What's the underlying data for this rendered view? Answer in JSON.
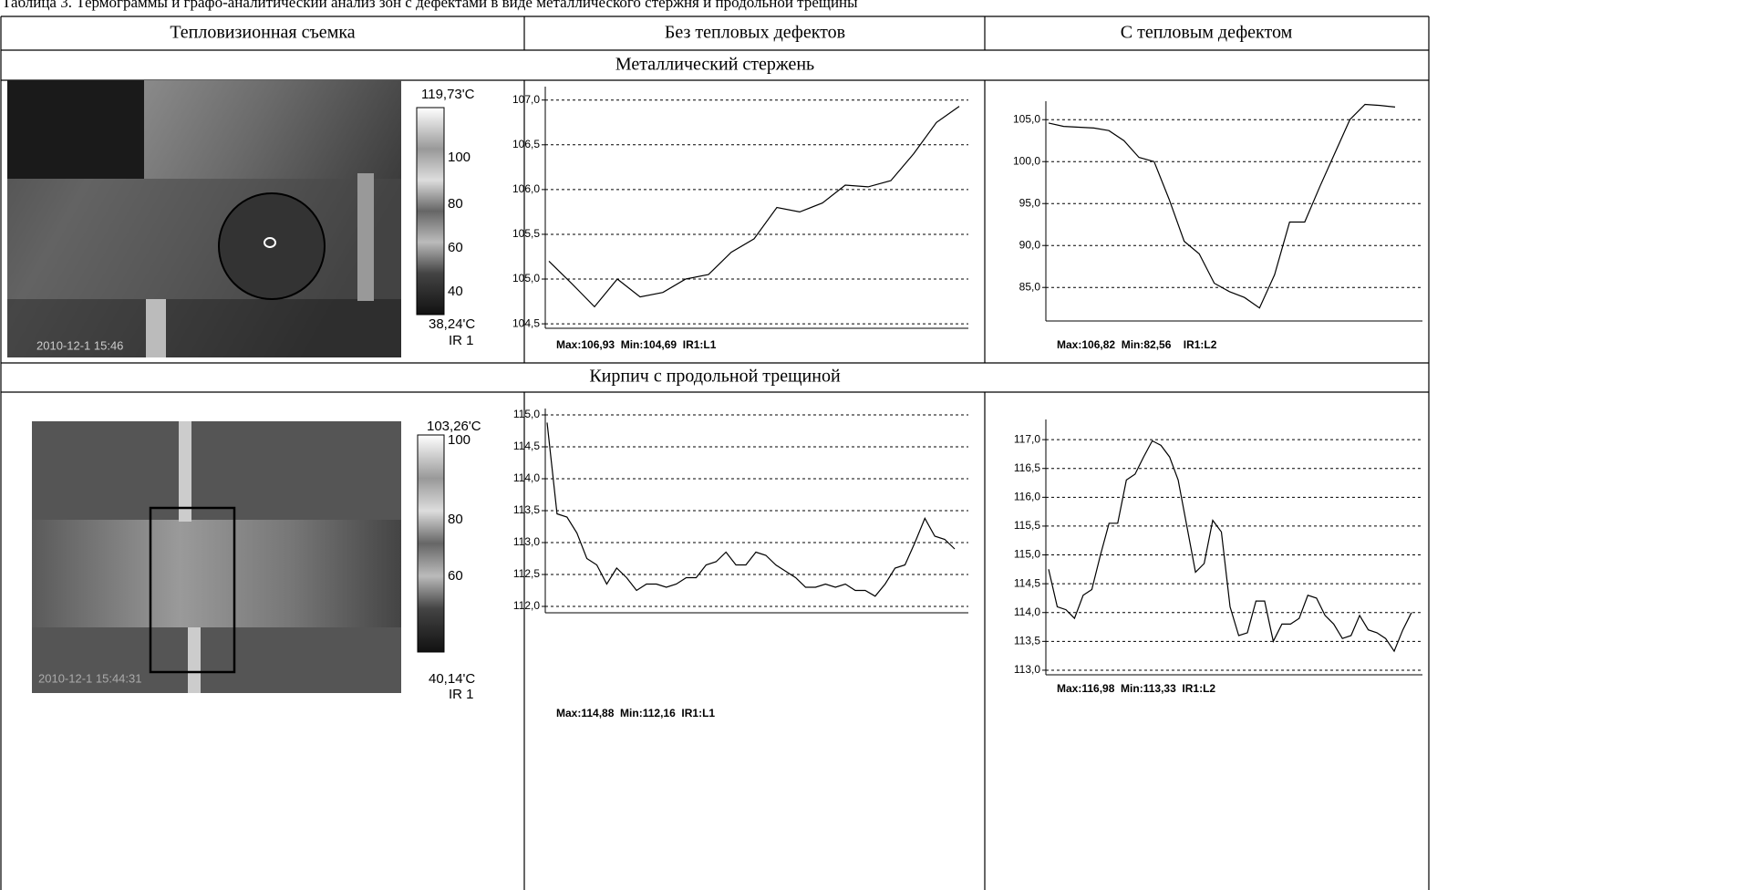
{
  "caption": "Таблица 3. Термограммы и графо-аналитический анализ зон с дефектами в виде металлического стержня и продольной трещины",
  "table": {
    "headers": [
      "Тепловизионная съемка",
      "Без тепловых дефектов",
      "С тепловым дефектом"
    ],
    "sections": [
      {
        "title": "Металлический стержень",
        "thermogram": {
          "max_label": "119,73'C",
          "scale_ticks": [
            "100",
            "80",
            "60",
            "40"
          ],
          "min_label": "38,24'C",
          "channel": "IR 1",
          "timestamp": "2010-12-1 15:46"
        },
        "charts": [
          {
            "type": "line",
            "ylim": [
              104.45,
              107.15
            ],
            "yticks": [
              {
                "value": 104.5,
                "label": "104,5"
              },
              {
                "value": 105,
                "label": "105,0"
              },
              {
                "value": 105.5,
                "label": "105,5"
              },
              {
                "value": 106,
                "label": "106,0"
              },
              {
                "value": 106.5,
                "label": "106,5"
              },
              {
                "value": 107,
                "label": "107,0"
              }
            ],
            "values": [
              105.2,
              104.95,
              104.69,
              105.0,
              104.8,
              104.85,
              105.0,
              105.05,
              105.3,
              105.45,
              105.8,
              105.75,
              105.85,
              106.05,
              106.03,
              106.1,
              106.4,
              106.75,
              106.93
            ],
            "summary": "Max:106,93  Min:104,69  IR1:L1"
          },
          {
            "type": "line",
            "ylim": [
              81,
              107.2
            ],
            "yticks": [
              {
                "value": 85,
                "label": "85,0"
              },
              {
                "value": 90,
                "label": "90,0"
              },
              {
                "value": 95,
                "label": "95,0"
              },
              {
                "value": 100,
                "label": "100,0"
              },
              {
                "value": 105,
                "label": "105,0"
              }
            ],
            "values": [
              104.6,
              104.2,
              104.1,
              104.0,
              103.7,
              102.5,
              100.5,
              100.0,
              95.5,
              90.5,
              89.0,
              85.5,
              84.5,
              83.8,
              82.56,
              86.5,
              92.8,
              92.8,
              97.0,
              101.0,
              105.0,
              106.82,
              106.7,
              106.5
            ],
            "summary": "Max:106,82  Min:82,56    IR1:L2"
          }
        ]
      },
      {
        "title": "Кирпич с продольной трещиной",
        "thermogram": {
          "max_label": "103,26'C",
          "scale_ticks": [
            "100",
            "80",
            "60"
          ],
          "min_label": "40,14'C",
          "channel": "IR 1",
          "timestamp": "2010-12-1 15:44:31"
        },
        "charts": [
          {
            "type": "line",
            "ylim": [
              111.9,
              115.1
            ],
            "yticks": [
              {
                "value": 112,
                "label": "112,0"
              },
              {
                "value": 112.5,
                "label": "112,5"
              },
              {
                "value": 113,
                "label": "113,0"
              },
              {
                "value": 113.5,
                "label": "113,5"
              },
              {
                "value": 114,
                "label": "114,0"
              },
              {
                "value": 114.5,
                "label": "114,5"
              },
              {
                "value": 115,
                "label": "115,0"
              }
            ],
            "values": [
              114.88,
              113.45,
              113.4,
              113.15,
              112.75,
              112.65,
              112.35,
              112.6,
              112.45,
              112.25,
              112.35,
              112.35,
              112.3,
              112.35,
              112.45,
              112.45,
              112.65,
              112.7,
              112.85,
              112.65,
              112.65,
              112.85,
              112.8,
              112.65,
              112.55,
              112.45,
              112.3,
              112.3,
              112.35,
              112.3,
              112.35,
              112.25,
              112.25,
              112.16,
              112.35,
              112.6,
              112.65,
              113.0,
              113.38,
              113.1,
              113.05,
              112.9
            ],
            "summary": "Max:114,88  Min:112,16  IR1:L1"
          },
          {
            "type": "line",
            "ylim": [
              112.92,
              117.35
            ],
            "yticks": [
              {
                "value": 113,
                "label": "113,0"
              },
              {
                "value": 113.5,
                "label": "113,5"
              },
              {
                "value": 114,
                "label": "114,0"
              },
              {
                "value": 114.5,
                "label": "114,5"
              },
              {
                "value": 115,
                "label": "115,0"
              },
              {
                "value": 115.5,
                "label": "115,5"
              },
              {
                "value": 116,
                "label": "116,0"
              },
              {
                "value": 116.5,
                "label": "116,5"
              },
              {
                "value": 117,
                "label": "117,0"
              }
            ],
            "values": [
              114.75,
              114.1,
              114.05,
              113.9,
              114.3,
              114.4,
              115.0,
              115.55,
              115.55,
              116.3,
              116.4,
              116.7,
              116.98,
              116.9,
              116.7,
              116.3,
              115.5,
              114.7,
              114.85,
              115.6,
              115.4,
              114.1,
              113.6,
              113.65,
              114.2,
              114.2,
              113.5,
              113.8,
              113.8,
              113.9,
              114.3,
              114.25,
              113.95,
              113.8,
              113.55,
              113.6,
              113.95,
              113.7,
              113.65,
              113.55,
              113.33,
              113.7,
              114.0
            ],
            "summary": "Max:116,98  Min:113,33  IR1:L2"
          }
        ]
      }
    ]
  }
}
